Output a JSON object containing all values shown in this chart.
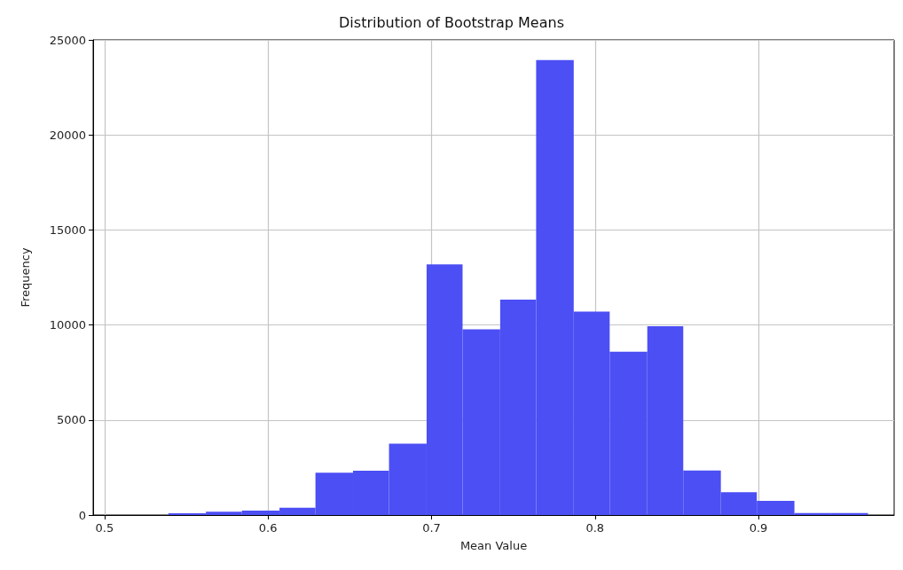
{
  "chart_data": {
    "type": "histogram",
    "title": "Distribution of Bootstrap Means",
    "xlabel": "Mean Value",
    "ylabel": "Frequency",
    "bins": [
      0.539,
      0.562,
      0.584,
      0.607,
      0.629,
      0.652,
      0.674,
      0.697,
      0.719,
      0.742,
      0.764,
      0.787,
      0.809,
      0.832,
      0.854,
      0.877,
      0.899,
      0.922,
      0.944,
      0.967
    ],
    "values": [
      90,
      170,
      230,
      390,
      2230,
      2330,
      3750,
      13190,
      9770,
      11330,
      23940,
      10700,
      8590,
      9930,
      2340,
      1200,
      750,
      100,
      100
    ],
    "color": "#4c4ff4",
    "xlim": [
      0.493,
      0.983
    ],
    "xticks": [
      0.5,
      0.6,
      0.7,
      0.8,
      0.9
    ],
    "ylim": [
      0,
      25000
    ],
    "yticks": [
      0,
      5000,
      10000,
      15000,
      20000,
      25000
    ],
    "grid": true
  }
}
